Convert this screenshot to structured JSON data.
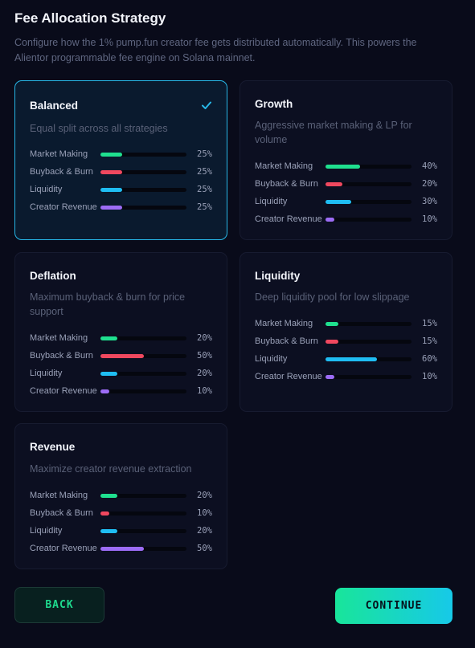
{
  "header": {
    "title": "Fee Allocation Strategy",
    "subtitle": "Configure how the 1% pump.fun creator fee gets distributed automatically. This powers the Alientor programmable fee engine on Solana mainnet."
  },
  "colors": {
    "market_making": "#1fe08f",
    "buyback_burn": "#f0485f",
    "liquidity": "#1fbdf3",
    "creator_revenue": "#9c6cf5",
    "selected_border": "#27b6e6"
  },
  "strategies": [
    {
      "name": "Balanced",
      "description": "Equal split across all strategies",
      "selected": true,
      "icon": "check-icon",
      "allocations": [
        {
          "label": "Market Making",
          "value": 25,
          "pct": "25%"
        },
        {
          "label": "Buyback & Burn",
          "value": 25,
          "pct": "25%"
        },
        {
          "label": "Liquidity",
          "value": 25,
          "pct": "25%"
        },
        {
          "label": "Creator Revenue",
          "value": 25,
          "pct": "25%"
        }
      ]
    },
    {
      "name": "Growth",
      "description": "Aggressive market making & LP for volume",
      "selected": false,
      "allocations": [
        {
          "label": "Market Making",
          "value": 40,
          "pct": "40%"
        },
        {
          "label": "Buyback & Burn",
          "value": 20,
          "pct": "20%"
        },
        {
          "label": "Liquidity",
          "value": 30,
          "pct": "30%"
        },
        {
          "label": "Creator Revenue",
          "value": 10,
          "pct": "10%"
        }
      ]
    },
    {
      "name": "Deflation",
      "description": "Maximum buyback & burn for price support",
      "selected": false,
      "allocations": [
        {
          "label": "Market Making",
          "value": 20,
          "pct": "20%"
        },
        {
          "label": "Buyback & Burn",
          "value": 50,
          "pct": "50%"
        },
        {
          "label": "Liquidity",
          "value": 20,
          "pct": "20%"
        },
        {
          "label": "Creator Revenue",
          "value": 10,
          "pct": "10%"
        }
      ]
    },
    {
      "name": "Liquidity",
      "description": "Deep liquidity pool for low slippage",
      "selected": false,
      "allocations": [
        {
          "label": "Market Making",
          "value": 15,
          "pct": "15%"
        },
        {
          "label": "Buyback & Burn",
          "value": 15,
          "pct": "15%"
        },
        {
          "label": "Liquidity",
          "value": 60,
          "pct": "60%"
        },
        {
          "label": "Creator Revenue",
          "value": 10,
          "pct": "10%"
        }
      ]
    },
    {
      "name": "Revenue",
      "description": "Maximize creator revenue extraction",
      "selected": false,
      "allocations": [
        {
          "label": "Market Making",
          "value": 20,
          "pct": "20%"
        },
        {
          "label": "Buyback & Burn",
          "value": 10,
          "pct": "10%"
        },
        {
          "label": "Liquidity",
          "value": 20,
          "pct": "20%"
        },
        {
          "label": "Creator Revenue",
          "value": 50,
          "pct": "50%"
        }
      ]
    }
  ],
  "footer": {
    "back_label": "BACK",
    "continue_label": "CONTINUE"
  }
}
